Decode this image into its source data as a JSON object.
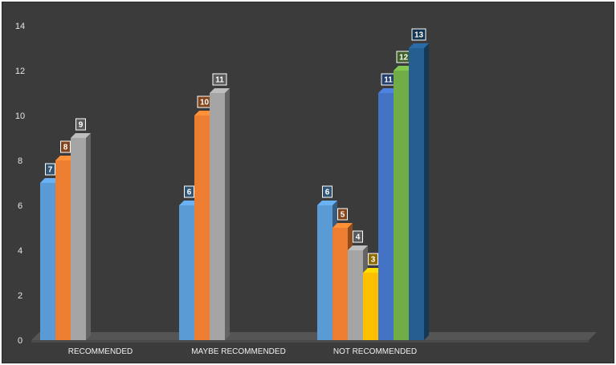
{
  "chart_data": {
    "type": "bar",
    "style": "3d-clustered-column",
    "background": "#3b3b3b",
    "grid": false,
    "legend": "none",
    "ylim": [
      0,
      14
    ],
    "yticks": [
      "0",
      "2",
      "4",
      "6",
      "8",
      "10",
      "12",
      "14"
    ],
    "categories": [
      "RECOMMENDED",
      "MAYBE RECOMMENDED",
      "NOT RECOMMENDED"
    ],
    "groups": [
      {
        "category": "RECOMMENDED",
        "bars": [
          {
            "value": 7,
            "label": "7",
            "color": "#5b9bd5"
          },
          {
            "value": 8,
            "label": "8",
            "color": "#ed7d31"
          },
          {
            "value": 9,
            "label": "9",
            "color": "#a5a5a5"
          }
        ]
      },
      {
        "category": "MAYBE RECOMMENDED",
        "bars": [
          {
            "value": 6,
            "label": "6",
            "color": "#5b9bd5"
          },
          {
            "value": 10,
            "label": "10",
            "color": "#ed7d31"
          },
          {
            "value": 11,
            "label": "11",
            "color": "#a5a5a5"
          }
        ]
      },
      {
        "category": "NOT RECOMMENDED",
        "bars": [
          {
            "value": 6,
            "label": "6",
            "color": "#5b9bd5"
          },
          {
            "value": 5,
            "label": "5",
            "color": "#ed7d31"
          },
          {
            "value": 4,
            "label": "4",
            "color": "#a5a5a5"
          },
          {
            "value": 3,
            "label": "3",
            "color": "#ffc000"
          },
          {
            "value": 11,
            "label": "11",
            "color": "#4472c4"
          },
          {
            "value": 12,
            "label": "12",
            "color": "#70ad47"
          },
          {
            "value": 13,
            "label": "13",
            "color": "#255e91"
          }
        ]
      }
    ]
  }
}
